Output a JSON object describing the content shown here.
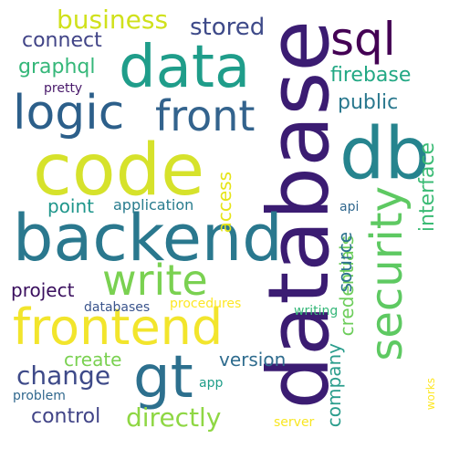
{
  "words": [
    {
      "text": "database",
      "color": "#3b1c72",
      "orientation": "vertical"
    },
    {
      "text": "backend",
      "color": "#2a788e",
      "orientation": "horizontal"
    },
    {
      "text": "code",
      "color": "#d6e22b",
      "orientation": "horizontal"
    },
    {
      "text": "data",
      "color": "#1f9d8a",
      "orientation": "horizontal"
    },
    {
      "text": "db",
      "color": "#26848e",
      "orientation": "horizontal"
    },
    {
      "text": "frontend",
      "color": "#f2e52c",
      "orientation": "horizontal"
    },
    {
      "text": "security",
      "color": "#5ec962",
      "orientation": "vertical"
    },
    {
      "text": "logic",
      "color": "#2c5f8a",
      "orientation": "horizontal"
    },
    {
      "text": "front",
      "color": "#33638d",
      "orientation": "horizontal"
    },
    {
      "text": "gt",
      "color": "#2d708e",
      "orientation": "horizontal"
    },
    {
      "text": "write",
      "color": "#7ad151",
      "orientation": "horizontal"
    },
    {
      "text": "sql",
      "color": "#440154",
      "orientation": "horizontal"
    },
    {
      "text": "business",
      "color": "#d0e11c",
      "orientation": "horizontal"
    },
    {
      "text": "stored",
      "color": "#3e4a89",
      "orientation": "horizontal"
    },
    {
      "text": "connect",
      "color": "#414487",
      "orientation": "horizontal"
    },
    {
      "text": "graphql",
      "color": "#35b779",
      "orientation": "horizontal"
    },
    {
      "text": "firebase",
      "color": "#22a884",
      "orientation": "horizontal"
    },
    {
      "text": "public",
      "color": "#2a788e",
      "orientation": "horizontal"
    },
    {
      "text": "pretty",
      "color": "#48186a",
      "orientation": "horizontal"
    },
    {
      "text": "access",
      "color": "#e5e419",
      "orientation": "vertical"
    },
    {
      "text": "interface",
      "color": "#3bbb75",
      "orientation": "vertical"
    },
    {
      "text": "credentials",
      "color": "#6ccd5a",
      "orientation": "vertical"
    },
    {
      "text": "point",
      "color": "#1f968b",
      "orientation": "horizontal"
    },
    {
      "text": "application",
      "color": "#287c8e",
      "orientation": "horizontal"
    },
    {
      "text": "api",
      "color": "#31688e",
      "orientation": "horizontal"
    },
    {
      "text": "source",
      "color": "#2c728e",
      "orientation": "vertical"
    },
    {
      "text": "project",
      "color": "#3a0f5e",
      "orientation": "horizontal"
    },
    {
      "text": "databases",
      "color": "#3a548c",
      "orientation": "horizontal"
    },
    {
      "text": "procedures",
      "color": "#fde725",
      "orientation": "horizontal"
    },
    {
      "text": "writing",
      "color": "#35b779",
      "orientation": "horizontal"
    },
    {
      "text": "create",
      "color": "#7ad151",
      "orientation": "horizontal"
    },
    {
      "text": "version",
      "color": "#2f6c8e",
      "orientation": "horizontal"
    },
    {
      "text": "company",
      "color": "#2a9d8c",
      "orientation": "vertical"
    },
    {
      "text": "change",
      "color": "#3e4a89",
      "orientation": "horizontal"
    },
    {
      "text": "app",
      "color": "#1f9e89",
      "orientation": "horizontal"
    },
    {
      "text": "problem",
      "color": "#31688e",
      "orientation": "horizontal"
    },
    {
      "text": "control",
      "color": "#414487",
      "orientation": "horizontal"
    },
    {
      "text": "directly",
      "color": "#8fd744",
      "orientation": "horizontal"
    },
    {
      "text": "server",
      "color": "#f8e621",
      "orientation": "horizontal"
    },
    {
      "text": "works",
      "color": "#fde725",
      "orientation": "vertical"
    }
  ]
}
